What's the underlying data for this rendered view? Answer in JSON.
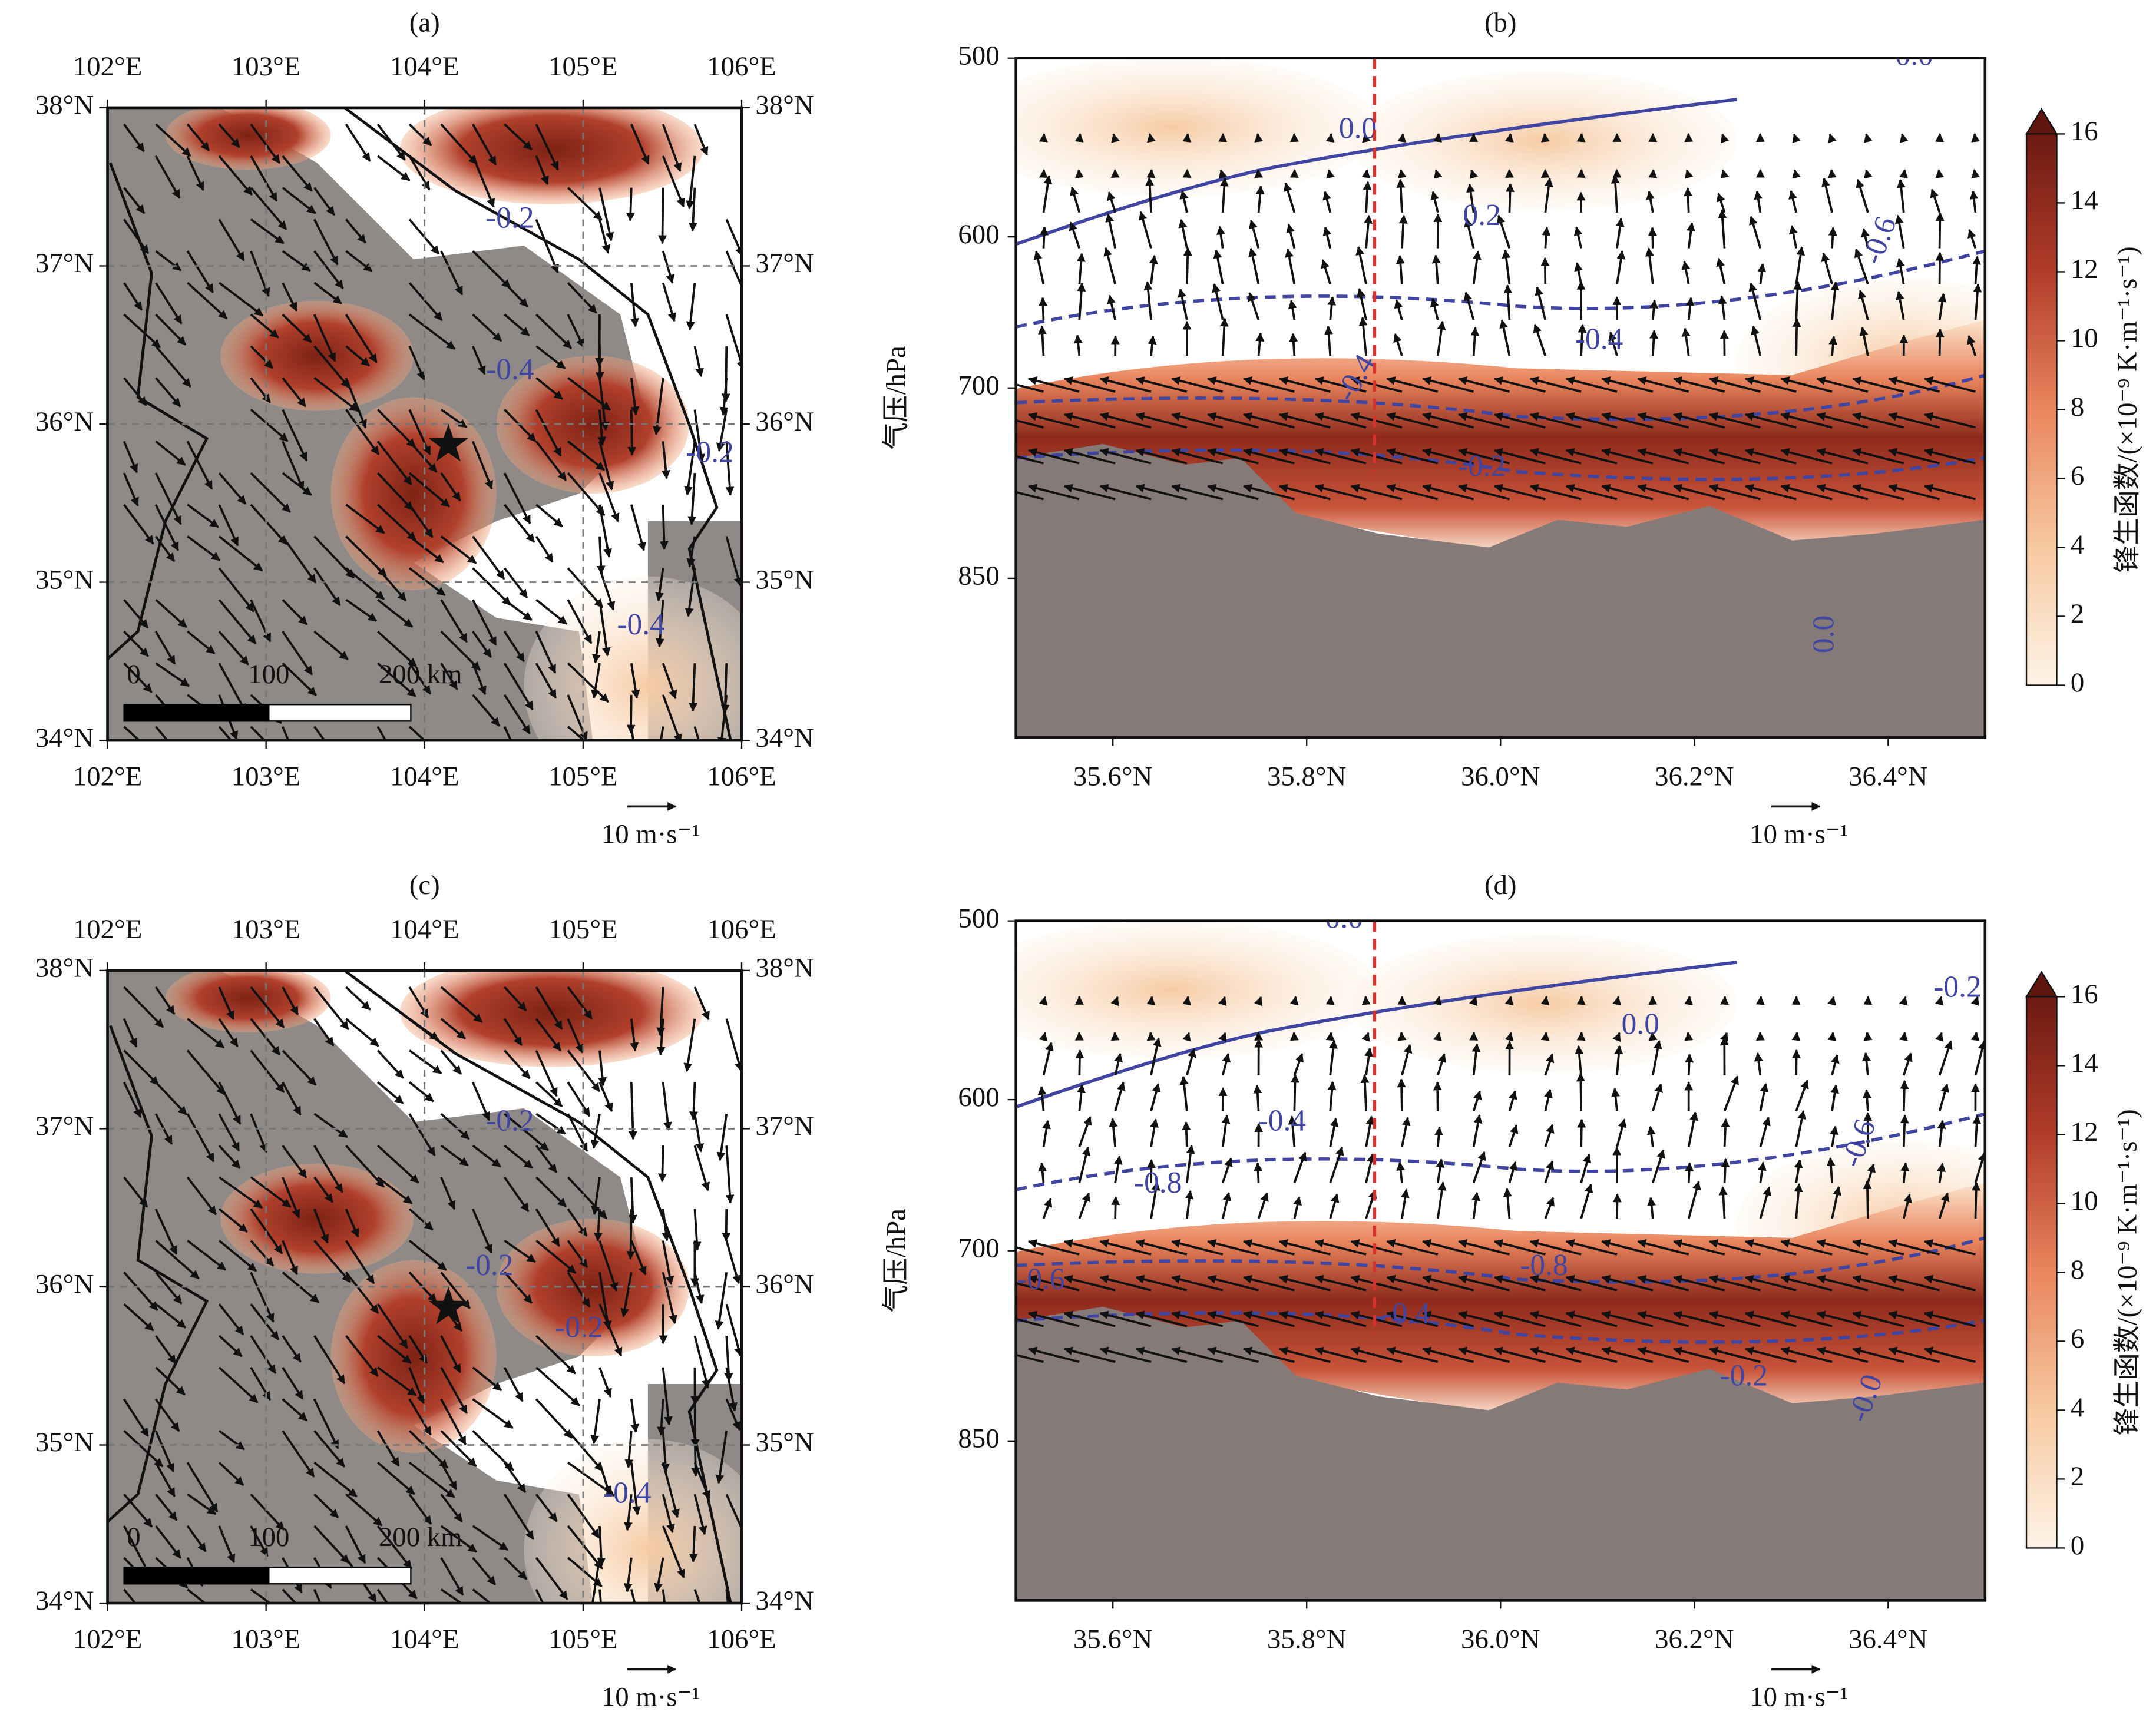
{
  "panels": [
    {
      "label": "(a)",
      "type": "map",
      "xlim": [
        102,
        106
      ],
      "ylim": [
        34,
        38
      ],
      "xticks": [
        {
          "value": 102,
          "label": "102°E"
        },
        {
          "value": 103,
          "label": "103°E"
        },
        {
          "value": 104,
          "label": "104°E"
        },
        {
          "value": 105,
          "label": "105°E"
        },
        {
          "value": 106,
          "label": "106°E"
        }
      ],
      "yticks": [
        {
          "value": 34,
          "label": "34°N"
        },
        {
          "value": 35,
          "label": "35°N"
        },
        {
          "value": 36,
          "label": "36°N"
        },
        {
          "value": 37,
          "label": "37°N"
        },
        {
          "value": 38,
          "label": "38°N"
        }
      ],
      "star": {
        "lon": 104.15,
        "lat": 35.87
      },
      "scale_bar": [
        "0",
        "100",
        "200 km"
      ],
      "vector_key": "10 m·s⁻¹",
      "contour_labels": [
        "-0.2",
        "-0.4",
        "-0.2",
        "-0.4"
      ]
    },
    {
      "label": "(b)",
      "type": "section",
      "xlim": [
        35.5,
        36.5
      ],
      "ylim": [
        1000,
        500
      ],
      "log_y": true,
      "y_label": "气压/hPa",
      "xticks": [
        {
          "value": 35.6,
          "label": "35.6°N"
        },
        {
          "value": 35.8,
          "label": "35.8°N"
        },
        {
          "value": 36.0,
          "label": "36.0°N"
        },
        {
          "value": 36.2,
          "label": "36.2°N"
        },
        {
          "value": 36.4,
          "label": "36.4°N"
        }
      ],
      "yticks": [
        500,
        600,
        700,
        850
      ],
      "reference_lat": 35.87,
      "vector_key": "10 m·s⁻¹",
      "contour_labels": [
        "0.0",
        "0.2",
        "-0.6",
        "-0.4",
        "-0.4",
        "-0.2",
        "0.0",
        "-0.0"
      ]
    },
    {
      "label": "(c)",
      "type": "map",
      "xlim": [
        102,
        106
      ],
      "ylim": [
        34,
        38
      ],
      "xticks": [
        {
          "value": 102,
          "label": "102°E"
        },
        {
          "value": 103,
          "label": "103°E"
        },
        {
          "value": 104,
          "label": "104°E"
        },
        {
          "value": 105,
          "label": "105°E"
        },
        {
          "value": 106,
          "label": "106°E"
        }
      ],
      "yticks": [
        {
          "value": 34,
          "label": "34°N"
        },
        {
          "value": 35,
          "label": "35°N"
        },
        {
          "value": 36,
          "label": "36°N"
        },
        {
          "value": 37,
          "label": "37°N"
        },
        {
          "value": 38,
          "label": "38°N"
        }
      ],
      "star": {
        "lon": 104.15,
        "lat": 35.87
      },
      "scale_bar": [
        "0",
        "100",
        "200 km"
      ],
      "vector_key": "10 m·s⁻¹",
      "contour_labels": [
        "-0.2",
        "-0.2",
        "-0.2",
        "-0.4"
      ]
    },
    {
      "label": "(d)",
      "type": "section",
      "xlim": [
        35.5,
        36.5
      ],
      "ylim": [
        1000,
        500
      ],
      "log_y": true,
      "y_label": "气压/hPa",
      "xticks": [
        {
          "value": 35.6,
          "label": "35.6°N"
        },
        {
          "value": 35.8,
          "label": "35.8°N"
        },
        {
          "value": 36.0,
          "label": "36.0°N"
        },
        {
          "value": 36.2,
          "label": "36.2°N"
        },
        {
          "value": 36.4,
          "label": "36.4°N"
        }
      ],
      "yticks": [
        500,
        600,
        700,
        850
      ],
      "reference_lat": 35.87,
      "vector_key": "10 m·s⁻¹",
      "contour_labels": [
        "0.0",
        "0.0",
        "-0.2",
        "-0.4",
        "-0.8",
        "-0.6",
        "-0.6",
        "-0.8",
        "-0.4",
        "-0.2",
        "-0.0"
      ]
    }
  ],
  "colorbar": {
    "label": "锋生函数/(×10⁻⁹ K·m⁻¹·s⁻¹)",
    "lim": [
      0,
      16
    ],
    "ticks": [
      0,
      2,
      4,
      6,
      8,
      10,
      12,
      14,
      16
    ]
  }
}
